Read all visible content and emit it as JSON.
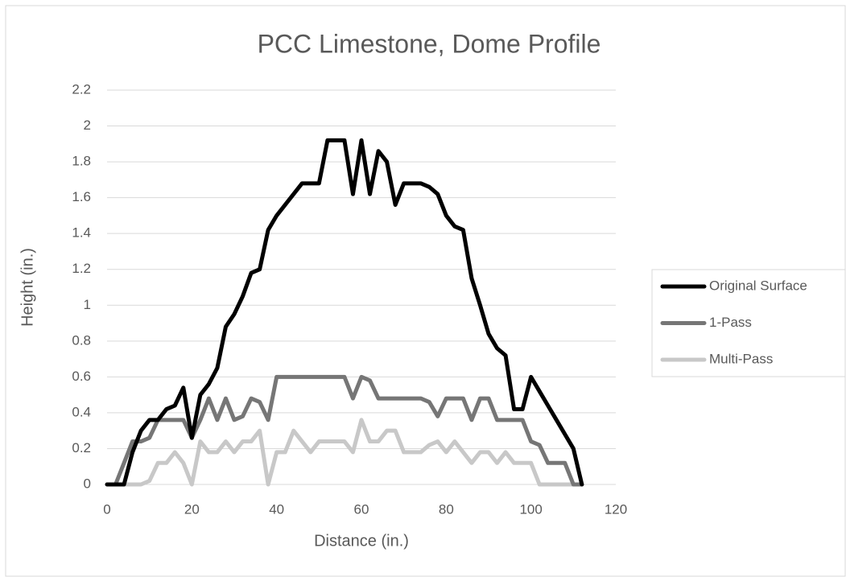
{
  "chart_data": {
    "type": "line",
    "title": "PCC Limestone, Dome Profile",
    "x_label": "Distance (in.)",
    "y_label": "Height (in.)",
    "x": [
      0,
      2,
      4,
      6,
      8,
      10,
      12,
      14,
      16,
      18,
      20,
      22,
      24,
      26,
      28,
      30,
      32,
      34,
      36,
      38,
      40,
      42,
      44,
      46,
      48,
      50,
      52,
      54,
      56,
      58,
      60,
      62,
      64,
      66,
      68,
      70,
      72,
      74,
      76,
      78,
      80,
      82,
      84,
      86,
      88,
      90,
      92,
      94,
      96,
      98,
      100,
      102,
      104,
      106,
      108,
      110,
      112
    ],
    "series": [
      {
        "name": "Original Surface",
        "color": "#000000",
        "values": [
          0,
          0,
          0,
          0.18,
          0.3,
          0.36,
          0.36,
          0.42,
          0.44,
          0.54,
          0.26,
          0.5,
          0.56,
          0.65,
          0.88,
          0.95,
          1.05,
          1.18,
          1.2,
          1.42,
          1.5,
          1.56,
          1.62,
          1.68,
          1.68,
          1.68,
          1.92,
          1.92,
          1.92,
          1.62,
          1.92,
          1.62,
          1.86,
          1.8,
          1.56,
          1.68,
          1.68,
          1.68,
          1.66,
          1.62,
          1.5,
          1.44,
          1.42,
          1.15,
          1.0,
          0.84,
          0.76,
          0.72,
          0.42,
          0.42,
          0.6,
          0.52,
          0.44,
          0.36,
          0.28,
          0.2,
          0
        ]
      },
      {
        "name": "1-Pass",
        "color": "#767676",
        "values": [
          0,
          0,
          0.12,
          0.24,
          0.24,
          0.26,
          0.36,
          0.36,
          0.36,
          0.36,
          0.26,
          0.36,
          0.48,
          0.36,
          0.48,
          0.36,
          0.38,
          0.48,
          0.46,
          0.36,
          0.6,
          0.6,
          0.6,
          0.6,
          0.6,
          0.6,
          0.6,
          0.6,
          0.6,
          0.48,
          0.6,
          0.58,
          0.48,
          0.48,
          0.48,
          0.48,
          0.48,
          0.48,
          0.46,
          0.38,
          0.48,
          0.48,
          0.48,
          0.36,
          0.48,
          0.48,
          0.36,
          0.36,
          0.36,
          0.36,
          0.24,
          0.22,
          0.12,
          0.12,
          0.12,
          0,
          0
        ]
      },
      {
        "name": "Multi-Pass",
        "color": "#c8c8c8",
        "values": [
          0,
          0,
          0,
          0,
          0,
          0.02,
          0.12,
          0.12,
          0.18,
          0.12,
          0,
          0.24,
          0.18,
          0.18,
          0.24,
          0.18,
          0.24,
          0.24,
          0.3,
          0,
          0.18,
          0.18,
          0.3,
          0.24,
          0.18,
          0.24,
          0.24,
          0.24,
          0.24,
          0.18,
          0.36,
          0.24,
          0.24,
          0.3,
          0.3,
          0.18,
          0.18,
          0.18,
          0.22,
          0.24,
          0.18,
          0.24,
          0.18,
          0.12,
          0.18,
          0.18,
          0.12,
          0.18,
          0.12,
          0.12,
          0.12,
          0,
          0,
          0,
          0,
          0,
          0
        ]
      }
    ],
    "xlim": [
      0,
      120
    ],
    "xticks": [
      0,
      20,
      40,
      60,
      80,
      100,
      120
    ],
    "ylim": [
      0,
      2.2
    ],
    "yticks": [
      0,
      0.2,
      0.4,
      0.6,
      0.8,
      1,
      1.2,
      1.4,
      1.6,
      1.8,
      2,
      2.2
    ],
    "grid": true,
    "legend": "right"
  }
}
